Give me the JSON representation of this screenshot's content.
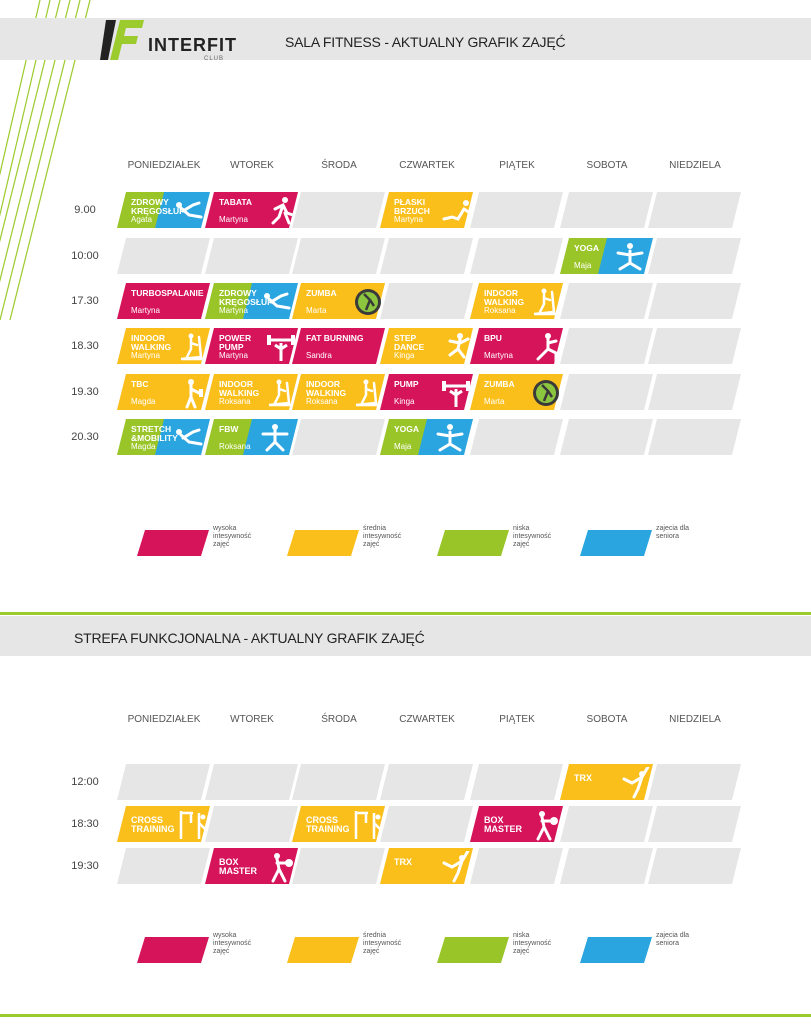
{
  "brand": {
    "name": "INTERFIT",
    "sub": "CLUB"
  },
  "colors": {
    "high": "#d6145a",
    "medium": "#fbbf1c",
    "low": "#9ac528",
    "senior": "#2aa5e0",
    "empty": "#e6e6e6",
    "accent": "#9bcb2c"
  },
  "section1": {
    "title": "SALA FITNESS - AKTUALNY GRAFIK ZAJĘĆ",
    "days": [
      "PONIEDZIAŁEK",
      "WTOREK",
      "ŚRODA",
      "CZWARTEK",
      "PIĄTEK",
      "SOBOTA",
      "NIEDZIELA"
    ],
    "times": [
      "9.00",
      "10:00",
      "17.30",
      "18.30",
      "19.30",
      "20.30"
    ],
    "classes": [
      {
        "row": 0,
        "col": 0,
        "name": "ZDROWY KRĘGOSŁUP",
        "instructor": "Agata",
        "color": "low",
        "icon": "stretch-icon",
        "split": "senior"
      },
      {
        "row": 0,
        "col": 1,
        "name": "TABATA",
        "instructor": "Martyna",
        "color": "high",
        "icon": "running-icon"
      },
      {
        "row": 0,
        "col": 3,
        "name": "PŁASKI BRZUCH",
        "instructor": "Martyna",
        "color": "medium",
        "icon": "crunch-icon"
      },
      {
        "row": 1,
        "col": 5,
        "name": "YOGA",
        "instructor": "Maja",
        "color": "low",
        "icon": "yoga-icon",
        "split": "senior"
      },
      {
        "row": 2,
        "col": 0,
        "name": "TURBOSPALANIE",
        "instructor": "Martyna",
        "color": "high"
      },
      {
        "row": 2,
        "col": 1,
        "name": "ZDROWY KRĘGOSŁUP",
        "instructor": "Martyna",
        "color": "low",
        "icon": "stretch-icon",
        "split": "senior"
      },
      {
        "row": 2,
        "col": 2,
        "name": "ZUMBA",
        "instructor": "Marta",
        "color": "medium",
        "icon": "zumba-icon"
      },
      {
        "row": 2,
        "col": 4,
        "name": "INDOOR WALKING",
        "instructor": "Roksana",
        "color": "medium",
        "icon": "treadmill-icon"
      },
      {
        "row": 3,
        "col": 0,
        "name": "INDOOR WALKING",
        "instructor": "Martyna",
        "color": "medium",
        "icon": "treadmill-icon"
      },
      {
        "row": 3,
        "col": 1,
        "name": "POWER PUMP",
        "instructor": "Martyna",
        "color": "high",
        "icon": "barbell-icon"
      },
      {
        "row": 3,
        "col": 2,
        "name": "FAT BURNING",
        "instructor": "Sandra",
        "color": "high"
      },
      {
        "row": 3,
        "col": 3,
        "name": "STEP DANCE",
        "instructor": "Kinga",
        "color": "medium",
        "icon": "step-icon"
      },
      {
        "row": 3,
        "col": 4,
        "name": "BPU",
        "instructor": "Martyna",
        "color": "high",
        "icon": "lunge-icon"
      },
      {
        "row": 4,
        "col": 0,
        "name": "TBC",
        "instructor": "Magda",
        "color": "medium",
        "icon": "dumbbell-person-icon"
      },
      {
        "row": 4,
        "col": 1,
        "name": "INDOOR WALKING",
        "instructor": "Roksana",
        "color": "medium",
        "icon": "treadmill-icon"
      },
      {
        "row": 4,
        "col": 2,
        "name": "INDOOR WALKING",
        "instructor": "Roksana",
        "color": "medium",
        "icon": "treadmill-icon"
      },
      {
        "row": 4,
        "col": 3,
        "name": "PUMP",
        "instructor": "Kinga",
        "color": "high",
        "icon": "barbell-icon"
      },
      {
        "row": 4,
        "col": 4,
        "name": "ZUMBA",
        "instructor": "Marta",
        "color": "medium",
        "icon": "zumba-icon"
      },
      {
        "row": 5,
        "col": 0,
        "name": "STRETCH &MOBILITY",
        "instructor": "Magda",
        "color": "low",
        "icon": "stretch-icon",
        "split": "senior"
      },
      {
        "row": 5,
        "col": 1,
        "name": "FBW",
        "instructor": "Roksana",
        "color": "low",
        "icon": "squat-icon",
        "split": "senior"
      },
      {
        "row": 5,
        "col": 3,
        "name": "YOGA",
        "instructor": "Maja",
        "color": "low",
        "icon": "yoga-icon",
        "split": "senior"
      }
    ]
  },
  "section2": {
    "title": "STREFA FUNKCJONALNA - AKTUALNY GRAFIK ZAJĘĆ",
    "days": [
      "PONIEDZIAŁEK",
      "WTOREK",
      "ŚRODA",
      "CZWARTEK",
      "PIĄTEK",
      "SOBOTA",
      "NIEDZIELA"
    ],
    "times": [
      "12:00",
      "18:30",
      "19:30"
    ],
    "classes": [
      {
        "row": 0,
        "col": 5,
        "name": "TRX",
        "instructor": "",
        "color": "medium",
        "icon": "trx-icon"
      },
      {
        "row": 1,
        "col": 0,
        "name": "CROSS TRAINING",
        "instructor": "",
        "color": "medium",
        "icon": "cross-icon"
      },
      {
        "row": 1,
        "col": 2,
        "name": "CROSS TRAINING",
        "instructor": "",
        "color": "medium",
        "icon": "cross-icon"
      },
      {
        "row": 1,
        "col": 4,
        "name": "BOX MASTER",
        "instructor": "",
        "color": "high",
        "icon": "boxing-icon"
      },
      {
        "row": 2,
        "col": 1,
        "name": "BOX MASTER",
        "instructor": "",
        "color": "high",
        "icon": "boxing-icon"
      },
      {
        "row": 2,
        "col": 3,
        "name": "TRX",
        "instructor": "",
        "color": "medium",
        "icon": "trx-icon"
      }
    ]
  },
  "legend": [
    {
      "color": "high",
      "text": "wysoka intesywność zajęć"
    },
    {
      "color": "medium",
      "text": "średnia intesywność zajęć"
    },
    {
      "color": "low",
      "text": "niska intesywność zajęć"
    },
    {
      "color": "senior",
      "text": "zajecia dla seniora"
    }
  ]
}
